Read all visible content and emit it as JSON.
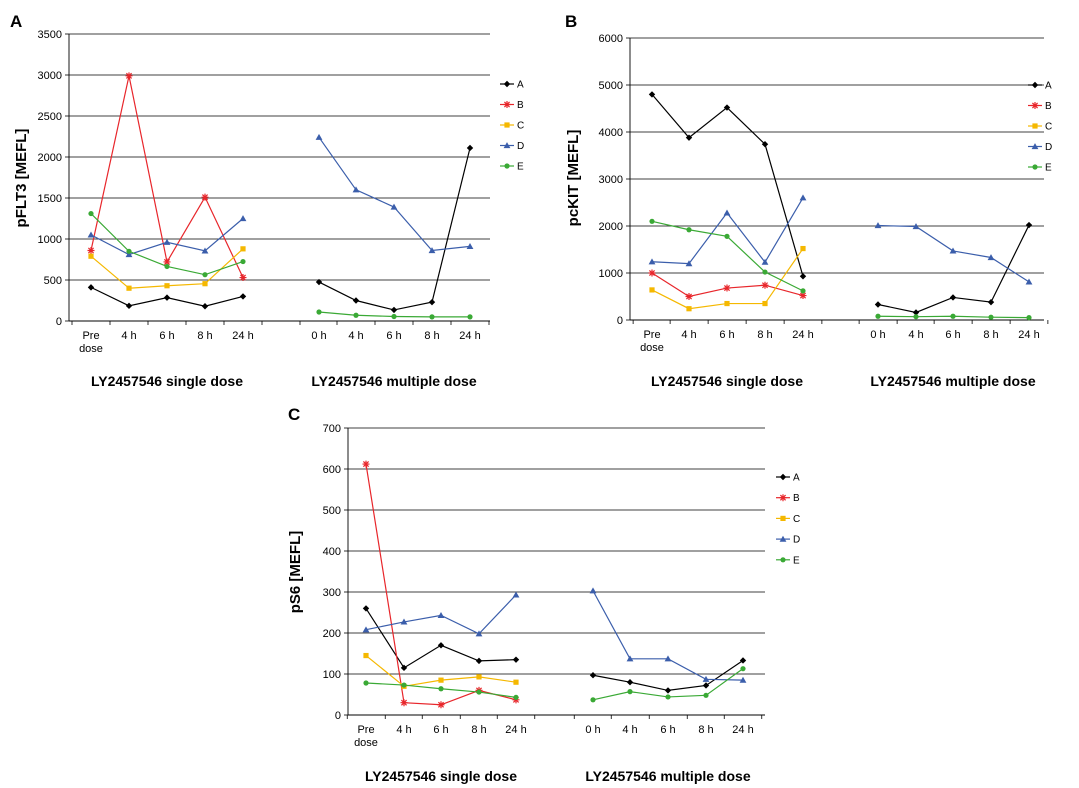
{
  "chart_data": [
    {
      "type": "line",
      "panel": "A",
      "ylabel": "pFLT3 [MEFL]",
      "ylim": [
        0,
        3500
      ],
      "yticks": [
        0,
        500,
        1000,
        1500,
        2000,
        2500,
        3000,
        3500
      ],
      "grid": "horizontal",
      "legend_position": "right",
      "groups": [
        {
          "label": "LY2457546 single dose",
          "categories": [
            "Pre\ndose",
            "4 h",
            "6 h",
            "8 h",
            "24 h"
          ]
        },
        {
          "label": "LY2457546 multiple dose",
          "categories": [
            "0 h",
            "4 h",
            "6 h",
            "8 h",
            "24 h"
          ]
        }
      ],
      "series": [
        {
          "name": "A",
          "color": "#000000",
          "marker": "diamond",
          "single": [
            410,
            185,
            285,
            180,
            300
          ],
          "multiple": [
            475,
            250,
            135,
            230,
            2110
          ]
        },
        {
          "name": "B",
          "color": "#e8262b",
          "marker": "star",
          "single": [
            860,
            2990,
            720,
            1510,
            530
          ],
          "multiple": []
        },
        {
          "name": "C",
          "color": "#f5b800",
          "marker": "square",
          "single": [
            790,
            400,
            430,
            455,
            880
          ],
          "multiple": []
        },
        {
          "name": "D",
          "color": "#3b5eab",
          "marker": "triangle",
          "single": [
            1050,
            810,
            960,
            855,
            1250
          ],
          "multiple": [
            2240,
            1600,
            1390,
            860,
            910
          ]
        },
        {
          "name": "E",
          "color": "#3aa935",
          "marker": "circle",
          "single": [
            1310,
            850,
            665,
            565,
            725
          ],
          "multiple": [
            110,
            70,
            55,
            50,
            50
          ]
        }
      ]
    },
    {
      "type": "line",
      "panel": "B",
      "ylabel": "pcKIT [MEFL]",
      "ylim": [
        0,
        6000
      ],
      "yticks": [
        0,
        1000,
        2000,
        3000,
        4000,
        5000,
        6000
      ],
      "grid": "horizontal",
      "legend_position": "right",
      "groups": [
        {
          "label": "LY2457546 single dose",
          "categories": [
            "Pre\ndose",
            "4 h",
            "6 h",
            "8 h",
            "24 h"
          ]
        },
        {
          "label": "LY2457546 multiple dose",
          "categories": [
            "0 h",
            "4 h",
            "6 h",
            "8 h",
            "24 h"
          ]
        }
      ],
      "series": [
        {
          "name": "A",
          "color": "#000000",
          "marker": "diamond",
          "single": [
            4800,
            3880,
            4520,
            3740,
            930
          ],
          "multiple": [
            330,
            160,
            480,
            380,
            2020
          ]
        },
        {
          "name": "B",
          "color": "#e8262b",
          "marker": "star",
          "single": [
            1000,
            500,
            680,
            740,
            520
          ],
          "multiple": []
        },
        {
          "name": "C",
          "color": "#f5b800",
          "marker": "square",
          "single": [
            640,
            240,
            350,
            350,
            1520
          ],
          "multiple": []
        },
        {
          "name": "D",
          "color": "#3b5eab",
          "marker": "triangle",
          "single": [
            1240,
            1200,
            2280,
            1230,
            2600
          ],
          "multiple": [
            2010,
            1990,
            1470,
            1330,
            810
          ]
        },
        {
          "name": "E",
          "color": "#3aa935",
          "marker": "circle",
          "single": [
            2100,
            1920,
            1780,
            1020,
            620
          ],
          "multiple": [
            80,
            70,
            80,
            60,
            50
          ]
        }
      ]
    },
    {
      "type": "line",
      "panel": "C",
      "ylabel": "pS6 [MEFL]",
      "ylim": [
        0,
        700
      ],
      "yticks": [
        0,
        100,
        200,
        300,
        400,
        500,
        600,
        700
      ],
      "grid": "horizontal",
      "legend_position": "right",
      "groups": [
        {
          "label": "LY2457546 single dose",
          "categories": [
            "Pre\ndose",
            "4 h",
            "6 h",
            "8 h",
            "24 h"
          ]
        },
        {
          "label": "LY2457546 multiple dose",
          "categories": [
            "0 h",
            "4 h",
            "6 h",
            "8 h",
            "24 h"
          ]
        }
      ],
      "series": [
        {
          "name": "A",
          "color": "#000000",
          "marker": "diamond",
          "single": [
            260,
            115,
            170,
            132,
            135
          ],
          "multiple": [
            97,
            80,
            60,
            72,
            133
          ]
        },
        {
          "name": "B",
          "color": "#e8262b",
          "marker": "star",
          "single": [
            612,
            30,
            25,
            60,
            37
          ],
          "multiple": []
        },
        {
          "name": "C",
          "color": "#f5b800",
          "marker": "square",
          "single": [
            145,
            70,
            85,
            93,
            80
          ],
          "multiple": []
        },
        {
          "name": "D",
          "color": "#3b5eab",
          "marker": "triangle",
          "single": [
            208,
            227,
            243,
            198,
            293
          ],
          "multiple": [
            303,
            137,
            137,
            87,
            85
          ]
        },
        {
          "name": "E",
          "color": "#3aa935",
          "marker": "circle",
          "single": [
            78,
            73,
            64,
            56,
            43
          ],
          "multiple": [
            37,
            57,
            44,
            48,
            113
          ]
        }
      ]
    }
  ]
}
